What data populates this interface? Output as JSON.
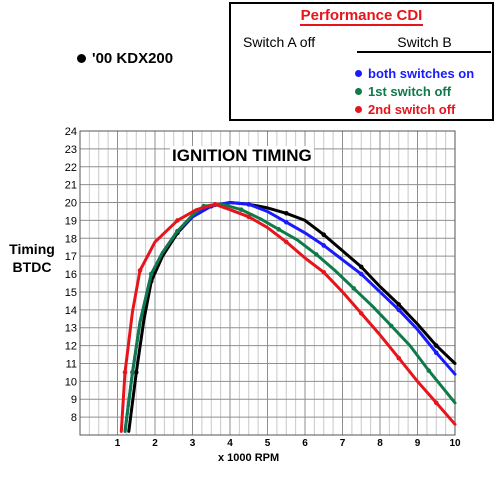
{
  "chart_data": {
    "type": "line",
    "title": "IGNITION TIMING",
    "subtitle": "'00 KDX200",
    "xlabel": "x 1000 RPM",
    "ylabel": "Timing BTDC",
    "xlim": [
      0,
      10
    ],
    "ylim": [
      7,
      24
    ],
    "x_ticks": [
      1,
      2,
      3,
      4,
      5,
      6,
      7,
      8,
      9,
      10
    ],
    "y_ticks": [
      8,
      9,
      10,
      11,
      12,
      13,
      14,
      15,
      16,
      17,
      18,
      19,
      20,
      21,
      22,
      23,
      24
    ],
    "grid": true,
    "legend_position": "top-right",
    "series": [
      {
        "name": "'00 KDX200",
        "color": "#000000",
        "points": [
          [
            1.3,
            7.2
          ],
          [
            1.5,
            10.5
          ],
          [
            1.7,
            13.4
          ],
          [
            1.9,
            15.6
          ],
          [
            2.2,
            17.0
          ],
          [
            2.6,
            18.3
          ],
          [
            3.0,
            19.2
          ],
          [
            3.5,
            19.8
          ],
          [
            4.0,
            20.0
          ],
          [
            4.5,
            19.9
          ],
          [
            5.0,
            19.7
          ],
          [
            5.5,
            19.4
          ],
          [
            6.0,
            19.0
          ],
          [
            6.5,
            18.2
          ],
          [
            7.0,
            17.3
          ],
          [
            7.5,
            16.4
          ],
          [
            8.0,
            15.3
          ],
          [
            8.5,
            14.3
          ],
          [
            9.0,
            13.2
          ],
          [
            9.5,
            12.0
          ],
          [
            10.0,
            11.0
          ]
        ]
      },
      {
        "name": "both switches on",
        "color": "#1a1aff",
        "points": [
          [
            1.2,
            7.2
          ],
          [
            1.4,
            10.5
          ],
          [
            1.6,
            13.3
          ],
          [
            1.9,
            16.0
          ],
          [
            2.2,
            17.2
          ],
          [
            2.6,
            18.4
          ],
          [
            3.0,
            19.2
          ],
          [
            3.5,
            19.8
          ],
          [
            4.0,
            20.0
          ],
          [
            4.5,
            19.9
          ],
          [
            5.0,
            19.5
          ],
          [
            5.5,
            18.9
          ],
          [
            6.0,
            18.3
          ],
          [
            6.5,
            17.6
          ],
          [
            7.0,
            16.8
          ],
          [
            7.5,
            16.0
          ],
          [
            8.0,
            15.0
          ],
          [
            8.5,
            14.0
          ],
          [
            9.0,
            12.9
          ],
          [
            9.5,
            11.6
          ],
          [
            10.0,
            10.4
          ]
        ]
      },
      {
        "name": "1st switch off",
        "color": "#0f7a4a",
        "points": [
          [
            1.2,
            7.2
          ],
          [
            1.4,
            10.5
          ],
          [
            1.6,
            13.3
          ],
          [
            1.9,
            16.0
          ],
          [
            2.2,
            17.2
          ],
          [
            2.6,
            18.4
          ],
          [
            3.0,
            19.3
          ],
          [
            3.3,
            19.8
          ],
          [
            3.8,
            19.9
          ],
          [
            4.3,
            19.6
          ],
          [
            4.8,
            19.1
          ],
          [
            5.3,
            18.5
          ],
          [
            5.8,
            17.9
          ],
          [
            6.3,
            17.1
          ],
          [
            6.8,
            16.2
          ],
          [
            7.3,
            15.2
          ],
          [
            7.8,
            14.2
          ],
          [
            8.3,
            13.1
          ],
          [
            8.8,
            12.0
          ],
          [
            9.3,
            10.6
          ],
          [
            10.0,
            8.8
          ]
        ]
      },
      {
        "name": "2nd switch off",
        "color": "#e8141c",
        "points": [
          [
            1.1,
            7.2
          ],
          [
            1.2,
            10.5
          ],
          [
            1.4,
            13.9
          ],
          [
            1.6,
            16.2
          ],
          [
            2.0,
            17.8
          ],
          [
            2.6,
            19.0
          ],
          [
            3.1,
            19.6
          ],
          [
            3.6,
            19.9
          ],
          [
            4.0,
            19.6
          ],
          [
            4.5,
            19.2
          ],
          [
            5.0,
            18.6
          ],
          [
            5.5,
            17.8
          ],
          [
            6.0,
            16.9
          ],
          [
            6.5,
            16.1
          ],
          [
            7.0,
            15.0
          ],
          [
            7.5,
            13.8
          ],
          [
            8.0,
            12.6
          ],
          [
            8.5,
            11.3
          ],
          [
            9.0,
            10.0
          ],
          [
            9.5,
            8.8
          ],
          [
            10.0,
            7.6
          ]
        ]
      }
    ]
  },
  "legend": {
    "title": "Performance CDI",
    "switch_a": "Switch A off",
    "switch_b": "Switch B",
    "entries": [
      {
        "label": "both switches on",
        "color": "#1a1aff"
      },
      {
        "label": "1st switch off",
        "color": "#0f7a4a"
      },
      {
        "label": "2nd switch off",
        "color": "#e8141c"
      }
    ]
  },
  "model_label": "'00 KDX200",
  "y_axis_label_line1": "Timing",
  "y_axis_label_line2": "BTDC"
}
